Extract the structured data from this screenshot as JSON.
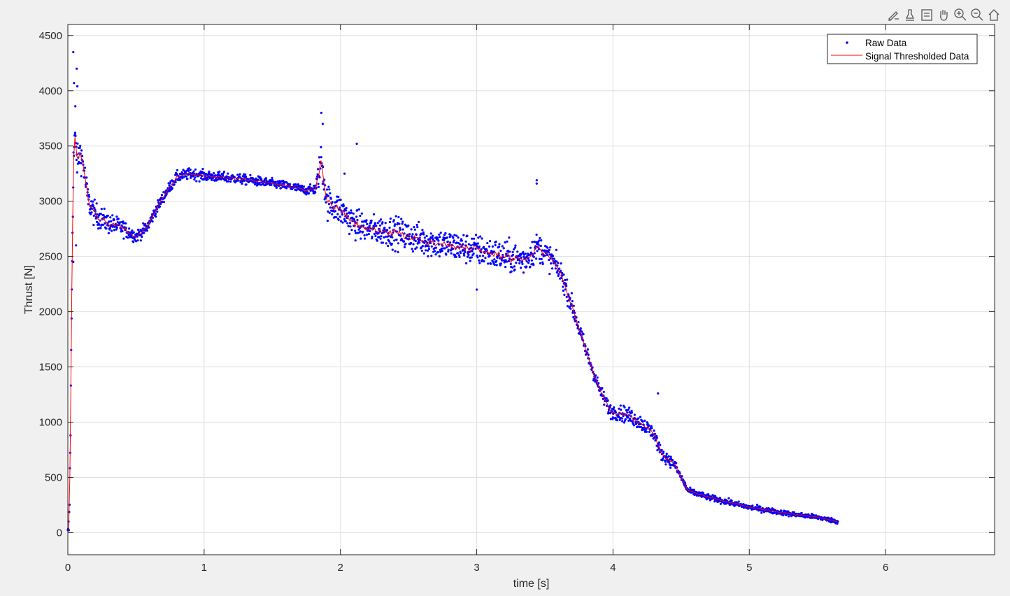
{
  "toolbar": {
    "icons": [
      "brush-icon",
      "data-tip-icon",
      "restore-view-icon",
      "pan-hand-icon",
      "zoom-in-icon",
      "zoom-out-icon",
      "home-icon"
    ]
  },
  "chart_data": {
    "type": "scatter",
    "title": "",
    "xlabel": "time [s]",
    "ylabel": "Thrust [N]",
    "xlim": [
      0,
      6.8
    ],
    "ylim": [
      -200,
      4600
    ],
    "xticks": [
      0,
      1,
      2,
      3,
      4,
      5,
      6
    ],
    "yticks": [
      0,
      500,
      1000,
      1500,
      2000,
      2500,
      3000,
      3500,
      4000,
      4500
    ],
    "grid": true,
    "legend_position": "top-right",
    "colors": {
      "raw": "#0000ff",
      "thresholded": "#ff0000",
      "axes": "#262626",
      "grid": "#dfdfdf"
    },
    "series": [
      {
        "name": "Raw Data",
        "style": "points",
        "trend": [
          [
            0.0,
            -60
          ],
          [
            0.01,
            90
          ],
          [
            0.02,
            1000
          ],
          [
            0.03,
            2300
          ],
          [
            0.04,
            3300
          ],
          [
            0.05,
            3600
          ],
          [
            0.07,
            3350
          ],
          [
            0.09,
            3450
          ],
          [
            0.11,
            3350
          ],
          [
            0.15,
            3000
          ],
          [
            0.2,
            2880
          ],
          [
            0.3,
            2800
          ],
          [
            0.4,
            2760
          ],
          [
            0.5,
            2680
          ],
          [
            0.58,
            2760
          ],
          [
            0.65,
            2930
          ],
          [
            0.72,
            3080
          ],
          [
            0.8,
            3220
          ],
          [
            0.9,
            3250
          ],
          [
            1.0,
            3230
          ],
          [
            1.2,
            3210
          ],
          [
            1.4,
            3180
          ],
          [
            1.6,
            3140
          ],
          [
            1.75,
            3100
          ],
          [
            1.82,
            3110
          ],
          [
            1.86,
            3380
          ],
          [
            1.9,
            3000
          ],
          [
            2.0,
            2920
          ],
          [
            2.1,
            2800
          ],
          [
            2.2,
            2750
          ],
          [
            2.4,
            2720
          ],
          [
            2.6,
            2650
          ],
          [
            2.8,
            2600
          ],
          [
            3.0,
            2560
          ],
          [
            3.2,
            2500
          ],
          [
            3.35,
            2470
          ],
          [
            3.45,
            2590
          ],
          [
            3.55,
            2470
          ],
          [
            3.62,
            2340
          ],
          [
            3.7,
            2050
          ],
          [
            3.8,
            1650
          ],
          [
            3.9,
            1300
          ],
          [
            3.98,
            1100
          ],
          [
            4.1,
            1070
          ],
          [
            4.2,
            1000
          ],
          [
            4.3,
            900
          ],
          [
            4.35,
            720
          ],
          [
            4.45,
            620
          ],
          [
            4.55,
            380
          ],
          [
            4.7,
            320
          ],
          [
            5.0,
            230
          ],
          [
            5.3,
            170
          ],
          [
            5.5,
            140
          ],
          [
            5.65,
            100
          ]
        ],
        "noise": [
          [
            0.0,
            150
          ],
          [
            0.2,
            100
          ],
          [
            0.5,
            50
          ],
          [
            0.75,
            45
          ],
          [
            1.8,
            35
          ],
          [
            1.86,
            150
          ],
          [
            1.92,
            130
          ],
          [
            2.2,
            110
          ],
          [
            2.4,
            125
          ],
          [
            3.35,
            125
          ],
          [
            3.62,
            90
          ],
          [
            3.9,
            55
          ],
          [
            4.1,
            65
          ],
          [
            4.35,
            55
          ],
          [
            4.55,
            25
          ],
          [
            5.65,
            18
          ]
        ],
        "outliers": [
          [
            0.04,
            4350
          ],
          [
            0.045,
            4070
          ],
          [
            0.065,
            4200
          ],
          [
            0.07,
            4040
          ],
          [
            0.055,
            3860
          ],
          [
            1.86,
            3800
          ],
          [
            1.87,
            3700
          ],
          [
            2.12,
            3520
          ],
          [
            2.03,
            3250
          ],
          [
            3.44,
            3190
          ],
          [
            3.44,
            3160
          ],
          [
            4.33,
            1260
          ],
          [
            3.0,
            2200
          ],
          [
            0.04,
            2450
          ],
          [
            0.06,
            2600
          ]
        ]
      },
      {
        "name": "Signal Thresholded Data",
        "style": "line"
      }
    ]
  }
}
